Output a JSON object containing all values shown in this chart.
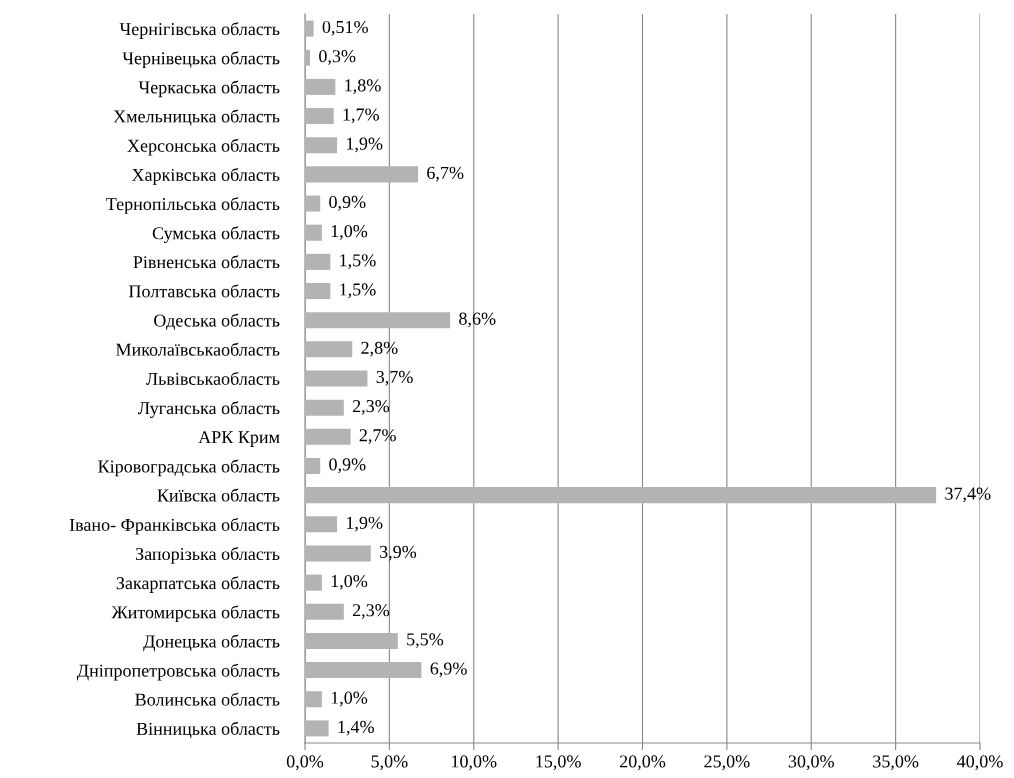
{
  "chart_data": {
    "type": "bar",
    "orientation": "horizontal",
    "categories": [
      "Чернігівська область",
      "Чернівецька область",
      "Черкаська область",
      "Хмельницька область",
      "Херсонська область",
      "Харківська область",
      "Тернопільська область",
      "Сумська область",
      "Рівненська область",
      "Полтавська область",
      "Одеська область",
      "Миколаївськаобласть",
      "Львівськаобласть",
      "Луганська область",
      "АРК Крим",
      "Кіровоградська область",
      "Київска область",
      "Івано- Франківська область",
      "Запорізька область",
      "Закарпатська область",
      "Житомирська область",
      "Донецька область",
      "Дніпропетровська область",
      "Волинська область",
      "Вінницька область"
    ],
    "values": [
      0.51,
      0.3,
      1.8,
      1.7,
      1.9,
      6.7,
      0.9,
      1.0,
      1.5,
      1.5,
      8.6,
      2.8,
      3.7,
      2.3,
      2.7,
      0.9,
      37.4,
      1.9,
      3.9,
      1.0,
      2.3,
      5.5,
      6.9,
      1.0,
      1.4
    ],
    "value_labels": [
      "0,51%",
      "0,3%",
      "1,8%",
      "1,7%",
      "1,9%",
      "6,7%",
      "0,9%",
      "1,0%",
      "1,5%",
      "1,5%",
      "8,6%",
      "2,8%",
      "3,7%",
      "2,3%",
      "2,7%",
      "0,9%",
      "37,4%",
      "1,9%",
      "3,9%",
      "1,0%",
      "2,3%",
      "5,5%",
      "6,9%",
      "1,0%",
      "1,4%"
    ],
    "color": "#b3b3b3",
    "xlim": [
      0,
      40
    ],
    "xticks": [
      {
        "value": 0,
        "label": "0,0%"
      },
      {
        "value": 5,
        "label": "5,0%"
      },
      {
        "value": 10,
        "label": "10,0%"
      },
      {
        "value": 15,
        "label": "15,0%"
      },
      {
        "value": 20,
        "label": "20,0%"
      },
      {
        "value": 25,
        "label": "25,0%"
      },
      {
        "value": 30,
        "label": "30,0%"
      },
      {
        "value": 35,
        "label": "35,0%"
      },
      {
        "value": 40,
        "label": "40,0%"
      }
    ],
    "grid": "x"
  }
}
